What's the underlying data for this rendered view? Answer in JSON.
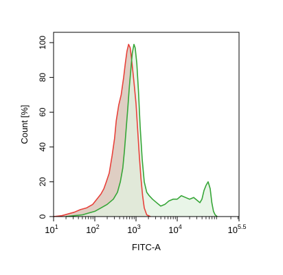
{
  "chart_data": {
    "type": "area",
    "xlabel": "FITC-A",
    "ylabel": "Count [%]",
    "xscale": "log",
    "xlim": [
      1,
      5.5
    ],
    "ylim": [
      0,
      100
    ],
    "xticks": [
      {
        "value": 1,
        "base": "10",
        "exp": "1"
      },
      {
        "value": 2,
        "base": "10",
        "exp": "2"
      },
      {
        "value": 3,
        "base": "10",
        "exp": "3"
      },
      {
        "value": 4,
        "base": "10",
        "exp": "4"
      },
      {
        "value": 5.5,
        "base": "10",
        "exp": "5.5"
      }
    ],
    "yticks": [
      "0",
      "20",
      "40",
      "60",
      "80",
      "100"
    ],
    "grid": false,
    "series": [
      {
        "color": "#e8403a",
        "fill": "#d9c6b9",
        "x": [
          1.0,
          1.2,
          1.35,
          1.5,
          1.65,
          1.8,
          1.95,
          2.05,
          2.15,
          2.22,
          2.28,
          2.35,
          2.42,
          2.48,
          2.52,
          2.58,
          2.64,
          2.7,
          2.74,
          2.78,
          2.82,
          2.86,
          2.89,
          2.93,
          2.96,
          3.0,
          3.04,
          3.08,
          3.12,
          3.16,
          3.2,
          3.26,
          3.35
        ],
        "y": [
          0,
          0.5,
          1.5,
          2.5,
          4,
          5,
          7,
          10,
          13,
          16,
          20,
          25,
          35,
          45,
          55,
          64,
          70,
          80,
          88,
          95,
          99,
          97,
          91,
          82,
          75,
          65,
          50,
          35,
          22,
          12,
          5,
          1,
          0
        ]
      },
      {
        "color": "#35a536",
        "fill": "#e2f1e0",
        "x": [
          1.3,
          1.5,
          1.7,
          1.85,
          2.0,
          2.15,
          2.3,
          2.45,
          2.55,
          2.62,
          2.68,
          2.72,
          2.76,
          2.8,
          2.84,
          2.88,
          2.91,
          2.95,
          2.98,
          3.02,
          3.06,
          3.1,
          3.15,
          3.2,
          3.26,
          3.32,
          3.4,
          3.5,
          3.6,
          3.7,
          3.8,
          3.9,
          4.0,
          4.1,
          4.2,
          4.3,
          4.4,
          4.5,
          4.55,
          4.6,
          4.65,
          4.7,
          4.75,
          4.8,
          4.84,
          4.88,
          4.92,
          4.97
        ],
        "y": [
          0,
          0.5,
          1,
          2,
          3,
          5,
          7,
          10,
          14,
          20,
          28,
          38,
          50,
          62,
          75,
          86,
          94,
          99,
          97,
          88,
          72,
          52,
          33,
          20,
          14,
          12,
          10,
          8,
          6,
          7,
          9,
          10,
          10,
          12,
          11,
          10,
          11,
          9,
          8,
          10,
          15,
          18,
          20,
          16,
          8,
          3,
          1,
          0
        ]
      }
    ]
  }
}
